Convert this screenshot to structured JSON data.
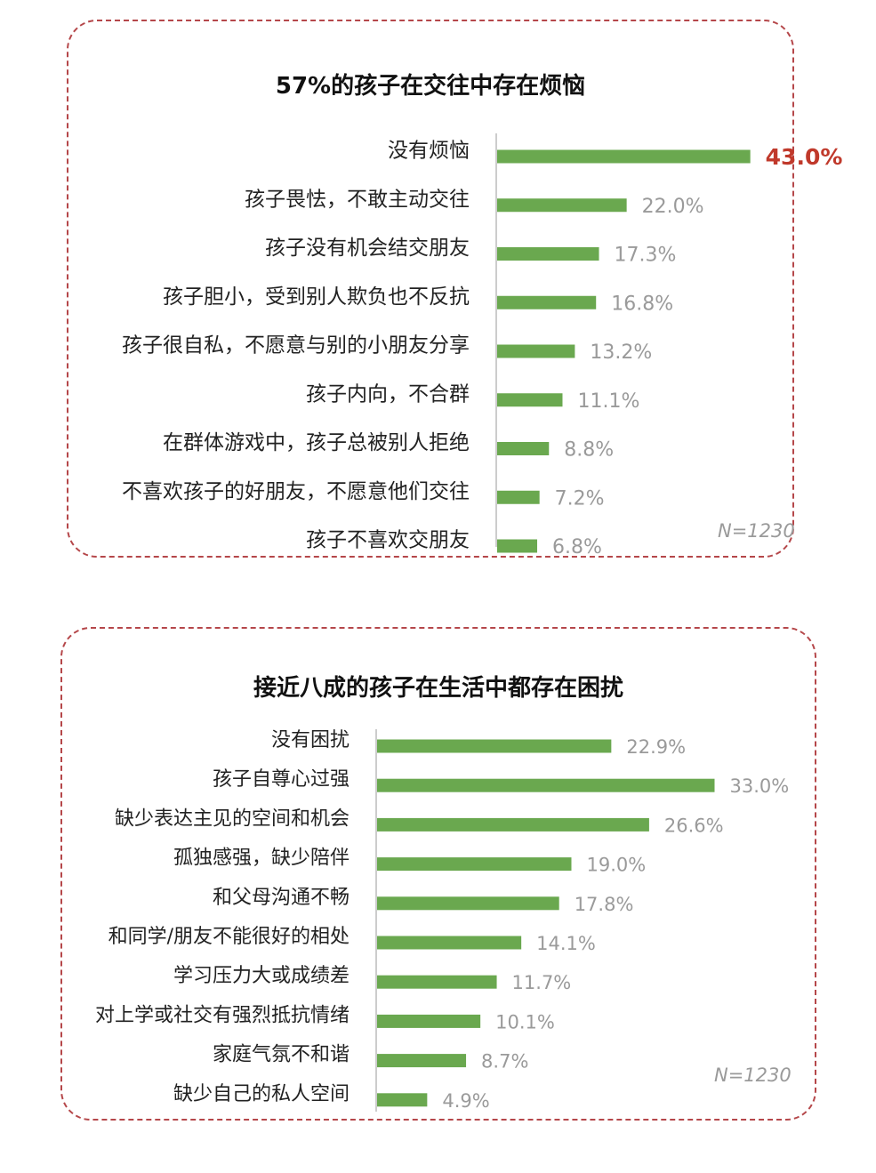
{
  "colors": {
    "bar": "#6aa84f",
    "highlight": "#c0392b",
    "value": "#9a9a9a",
    "label": "#222222",
    "axis": "#bbbbbb",
    "border": "#b5474a"
  },
  "chart_data": [
    {
      "type": "bar",
      "orientation": "horizontal",
      "title": "57%的孩子在交往中存在烦恼",
      "note": "N=1230",
      "categories": [
        "没有烦恼",
        "孩子畏怯，不敢主动交往",
        "孩子没有机会结交朋友",
        "孩子胆小，受到别人欺负也不反抗",
        "孩子很自私，不愿意与别的小朋友分享",
        "孩子内向，不合群",
        "在群体游戏中，孩子总被别人拒绝",
        "不喜欢孩子的好朋友，不愿意他们交往",
        "孩子不喜欢交朋友"
      ],
      "values": [
        43.0,
        22.0,
        17.3,
        16.8,
        13.2,
        11.1,
        8.8,
        7.2,
        6.8
      ],
      "value_labels": [
        "43.0%",
        "22.0%",
        "17.3%",
        "16.8%",
        "13.2%",
        "11.1%",
        "8.8%",
        "7.2%",
        "6.8%"
      ],
      "highlight_index": 0,
      "unit": "%"
    },
    {
      "type": "bar",
      "orientation": "horizontal",
      "title": "接近八成的孩子在生活中都存在困扰",
      "note": "N=1230",
      "categories": [
        "没有困扰",
        "孩子自尊心过强",
        "缺少表达主见的空间和机会",
        "孤独感强，缺少陪伴",
        "和父母沟通不畅",
        "和同学/朋友不能很好的相处",
        "学习压力大或成绩差",
        "对上学或社交有强烈抵抗情绪",
        "家庭气氛不和谐",
        "缺少自己的私人空间"
      ],
      "values": [
        22.9,
        33.0,
        26.6,
        19.0,
        17.8,
        14.1,
        11.7,
        10.1,
        8.7,
        4.9
      ],
      "value_labels": [
        "22.9%",
        "33.0%",
        "26.6%",
        "19.0%",
        "17.8%",
        "14.1%",
        "11.7%",
        "10.1%",
        "8.7%",
        "4.9%"
      ],
      "highlight_index": -1,
      "unit": "%"
    }
  ]
}
